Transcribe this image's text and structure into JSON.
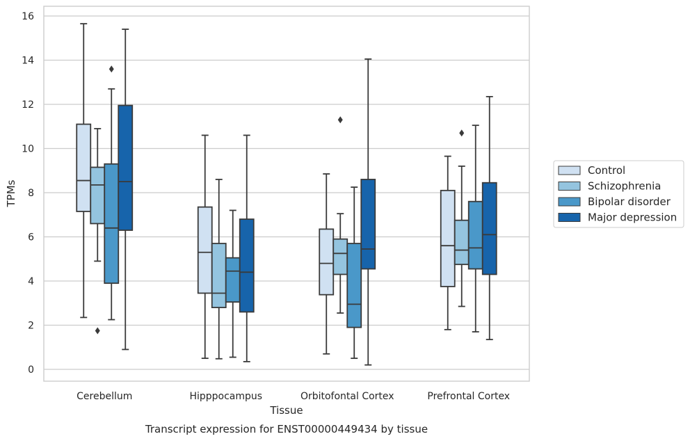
{
  "chart_data": {
    "type": "box",
    "caption": "Transcript expression for ENST00000449434 by tissue",
    "xlabel": "Tissue",
    "ylabel": "TPMs",
    "ylim": [
      -0.5,
      16.5
    ],
    "yticks": [
      0,
      2,
      4,
      6,
      8,
      10,
      12,
      14,
      16
    ],
    "grid": true,
    "legend_position": "right",
    "categories": [
      "Cerebellum",
      "Hipppocampus",
      "Orbitofontal Cortex",
      "Prefrontal Cortex"
    ],
    "series": [
      {
        "name": "Control",
        "color": "#d0e1f2",
        "boxes": [
          {
            "whislo": 2.35,
            "q1": 7.15,
            "med": 8.55,
            "q3": 11.1,
            "whishi": 15.65,
            "fliers": []
          },
          {
            "whislo": 0.5,
            "q1": 3.45,
            "med": 5.3,
            "q3": 7.35,
            "whishi": 10.6,
            "fliers": []
          },
          {
            "whislo": 0.7,
            "q1": 3.38,
            "med": 4.8,
            "q3": 6.35,
            "whishi": 8.85,
            "fliers": []
          },
          {
            "whislo": 1.8,
            "q1": 3.75,
            "med": 5.6,
            "q3": 8.1,
            "whishi": 9.65,
            "fliers": []
          }
        ]
      },
      {
        "name": "Schizophrenia",
        "color": "#94c4df",
        "boxes": [
          {
            "whislo": 4.9,
            "q1": 6.6,
            "med": 8.35,
            "q3": 9.15,
            "whishi": 10.9,
            "fliers": [
              1.75
            ]
          },
          {
            "whislo": 0.48,
            "q1": 2.8,
            "med": 3.45,
            "q3": 5.7,
            "whishi": 8.6,
            "fliers": []
          },
          {
            "whislo": 2.55,
            "q1": 4.3,
            "med": 5.25,
            "q3": 5.9,
            "whishi": 7.05,
            "fliers": [
              11.3
            ]
          },
          {
            "whislo": 2.85,
            "q1": 4.75,
            "med": 5.4,
            "q3": 6.75,
            "whishi": 9.2,
            "fliers": [
              10.7
            ]
          }
        ]
      },
      {
        "name": "Bipolar disorder",
        "color": "#4a98c9",
        "boxes": [
          {
            "whislo": 2.25,
            "q1": 3.9,
            "med": 6.4,
            "q3": 9.3,
            "whishi": 12.7,
            "fliers": [
              13.6
            ]
          },
          {
            "whislo": 0.55,
            "q1": 3.05,
            "med": 4.45,
            "q3": 5.05,
            "whishi": 7.2,
            "fliers": []
          },
          {
            "whislo": 0.5,
            "q1": 1.9,
            "med": 2.95,
            "q3": 5.7,
            "whishi": 8.25,
            "fliers": []
          },
          {
            "whislo": 1.7,
            "q1": 4.55,
            "med": 5.5,
            "q3": 7.6,
            "whishi": 11.05,
            "fliers": []
          }
        ]
      },
      {
        "name": "Major depression",
        "color": "#1764ab",
        "boxes": [
          {
            "whislo": 0.9,
            "q1": 6.3,
            "med": 8.5,
            "q3": 11.95,
            "whishi": 15.4,
            "fliers": []
          },
          {
            "whislo": 0.35,
            "q1": 2.6,
            "med": 4.4,
            "q3": 6.8,
            "whishi": 10.6,
            "fliers": []
          },
          {
            "whislo": 0.2,
            "q1": 4.55,
            "med": 5.45,
            "q3": 8.6,
            "whishi": 14.05,
            "fliers": []
          },
          {
            "whislo": 1.35,
            "q1": 4.3,
            "med": 6.1,
            "q3": 8.45,
            "whishi": 12.35,
            "fliers": []
          }
        ]
      }
    ]
  }
}
